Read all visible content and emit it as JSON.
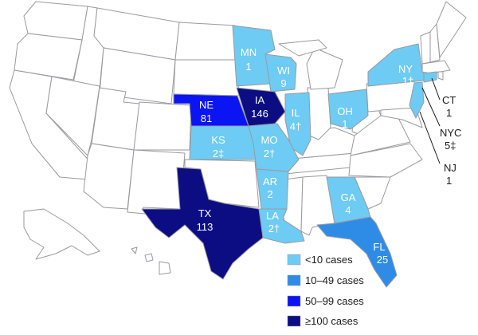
{
  "colors": {
    "none": "#ffffff",
    "lt10": "#6ecbf3",
    "10to49": "#2f8ce6",
    "50to99": "#0b14f2",
    "gte100": "#0d0d83",
    "border": "#9a9aa0"
  },
  "states": [
    {
      "abbr": "MN",
      "value": "1"
    },
    {
      "abbr": "WI",
      "value": "9"
    },
    {
      "abbr": "NE",
      "value": "81"
    },
    {
      "abbr": "IA",
      "value": "146"
    },
    {
      "abbr": "IL",
      "value": "4†"
    },
    {
      "abbr": "KS",
      "value": "2‡"
    },
    {
      "abbr": "MO",
      "value": "2†"
    },
    {
      "abbr": "OH",
      "value": "1"
    },
    {
      "abbr": "NY",
      "value": "1†"
    },
    {
      "abbr": "AR",
      "value": "2"
    },
    {
      "abbr": "GA",
      "value": "4"
    },
    {
      "abbr": "TX",
      "value": "113"
    },
    {
      "abbr": "LA",
      "value": "2†"
    },
    {
      "abbr": "FL",
      "value": "25"
    }
  ],
  "callouts": [
    {
      "abbr": "CT",
      "value": "1"
    },
    {
      "abbr": "NYC",
      "value": "5‡"
    },
    {
      "abbr": "NJ",
      "value": "1"
    }
  ],
  "legend": [
    {
      "label": "<10 cases",
      "color": "#6ecbf3"
    },
    {
      "label": "10–49 cases",
      "color": "#2f8ce6"
    },
    {
      "label": "50–99 cases",
      "color": "#0b14f2"
    },
    {
      "label": "≥100 cases",
      "color": "#0d0d83"
    }
  ]
}
